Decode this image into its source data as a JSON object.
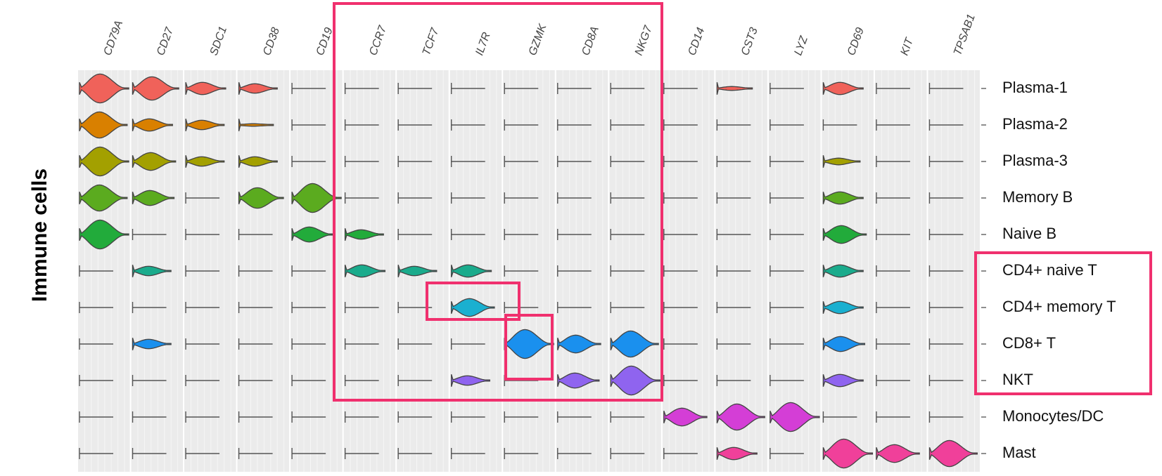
{
  "chart_data": {
    "type": "violin",
    "y_label": "Immune cells",
    "categories": [
      "CD79A",
      "CD27",
      "SDC1",
      "CD38",
      "CD19",
      "CCR7",
      "TCF7",
      "IL7R",
      "GZMK",
      "CD8A",
      "NKG7",
      "CD14",
      "CST3",
      "LYZ",
      "CD69",
      "KIT",
      "TPSAB1"
    ],
    "series": [
      {
        "name": "Plasma-1",
        "color": "#f0625a",
        "values": [
          1,
          0.8,
          0.4,
          0.3,
          0,
          0,
          0,
          0,
          0,
          0,
          0,
          0,
          0.1,
          0,
          0.4,
          0,
          0
        ]
      },
      {
        "name": "Plasma-2",
        "color": "#d98000",
        "values": [
          0.9,
          0.4,
          0.3,
          0.05,
          0,
          0,
          0,
          0,
          0,
          0,
          0,
          0,
          0,
          0,
          0,
          0,
          0
        ]
      },
      {
        "name": "Plasma-3",
        "color": "#a3a000",
        "values": [
          1,
          0.6,
          0.3,
          0.3,
          0,
          0,
          0,
          0,
          0,
          0,
          0,
          0,
          0,
          0,
          0.2,
          0,
          0
        ]
      },
      {
        "name": "Memory B",
        "color": "#5bab1f",
        "values": [
          0.9,
          0.5,
          0,
          0.7,
          1,
          0,
          0,
          0,
          0,
          0,
          0,
          0,
          0,
          0,
          0.4,
          0,
          0
        ]
      },
      {
        "name": "Naive B",
        "color": "#22ab3b",
        "values": [
          1,
          0,
          0,
          0,
          0.5,
          0.3,
          0,
          0,
          0,
          0,
          0,
          0,
          0,
          0,
          0.6,
          0,
          0
        ]
      },
      {
        "name": "CD4+ naive T",
        "color": "#1aab8c",
        "values": [
          0,
          0.3,
          0,
          0,
          0,
          0.4,
          0.3,
          0.4,
          0,
          0,
          0,
          0,
          0,
          0,
          0.4,
          0,
          0
        ]
      },
      {
        "name": "CD4+ memory T",
        "color": "#1ab0d0",
        "values": [
          0,
          0,
          0,
          0,
          0,
          0,
          0,
          0.6,
          0,
          0,
          0,
          0,
          0,
          0,
          0.4,
          0,
          0
        ]
      },
      {
        "name": "CD8+ T",
        "color": "#1a90ee",
        "values": [
          0,
          0.3,
          0,
          0,
          0,
          0,
          0,
          0,
          1,
          0.6,
          0.9,
          0,
          0,
          0,
          0.5,
          0,
          0
        ]
      },
      {
        "name": "NKT",
        "color": "#8f64ef",
        "values": [
          0,
          0,
          0,
          0,
          0,
          0,
          0,
          0.3,
          0,
          0.5,
          1,
          0,
          0,
          0,
          0.4,
          0,
          0
        ]
      },
      {
        "name": "Monocytes/DC",
        "color": "#d43ed6",
        "values": [
          0,
          0,
          0,
          0,
          0,
          0,
          0,
          0,
          0,
          0,
          0,
          0.6,
          0.9,
          1,
          0,
          0,
          0
        ]
      },
      {
        "name": "Mast",
        "color": "#f0409a",
        "values": [
          0,
          0,
          0,
          0,
          0,
          0,
          0,
          0,
          0,
          0,
          0,
          0,
          0.4,
          0,
          1,
          0.6,
          0.9
        ]
      }
    ]
  }
}
